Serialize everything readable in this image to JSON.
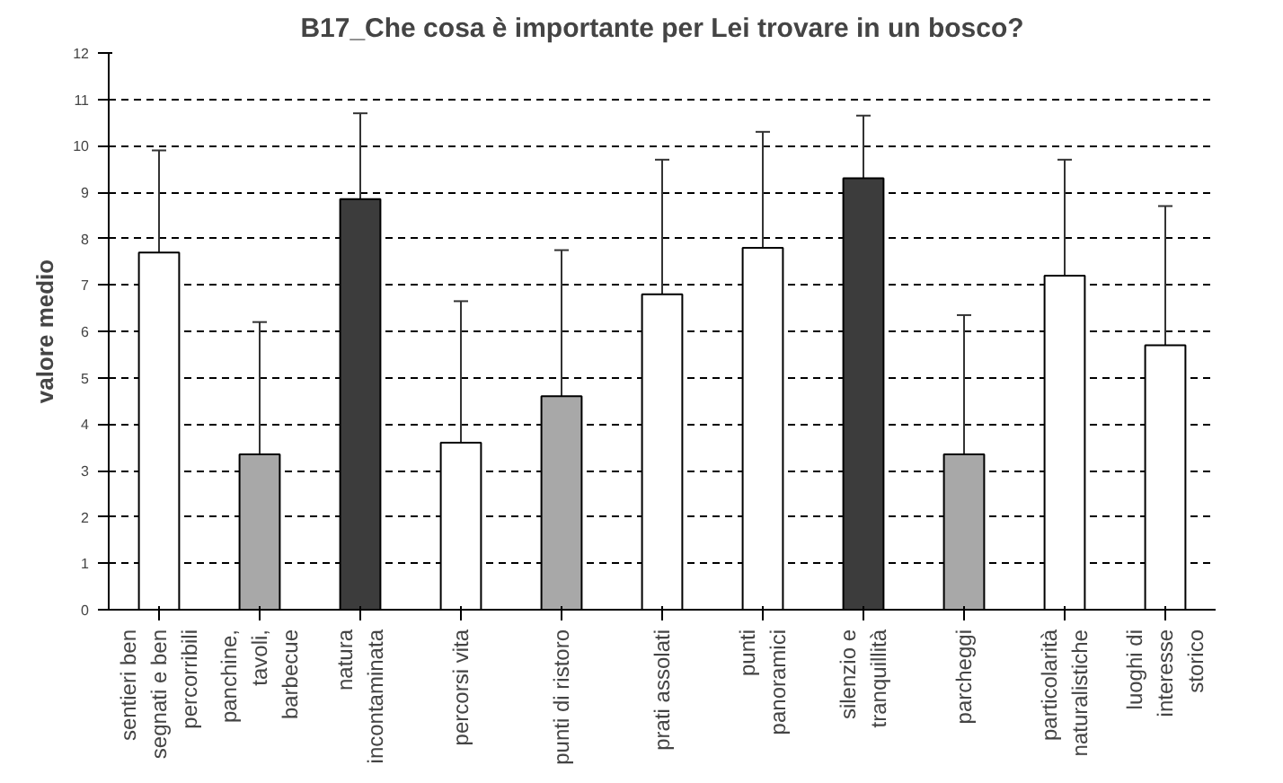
{
  "chart_data": {
    "type": "bar",
    "title": "B17_Che cosa è importante per Lei trovare in un bosco?",
    "ylabel": "valore medio",
    "categories": [
      "sentieri ben\nsegnati e ben\npercorribili",
      "panchine,\ntavoli,\nbarbecue",
      "natura\nincontaminata",
      "percorsi vita",
      "punti di ristoro",
      "prati assolati",
      "punti\npanoramici",
      "silenzio e\ntranquillità",
      "parcheggi",
      "particolarità\nnaturalistiche",
      "luoghi di\ninteresse\nstorico"
    ],
    "values": [
      7.7,
      3.35,
      8.85,
      3.6,
      4.6,
      6.8,
      7.8,
      9.3,
      3.35,
      7.2,
      5.7
    ],
    "errors": [
      [
        7.7,
        9.9
      ],
      [
        3.35,
        6.2
      ],
      [
        8.85,
        10.7
      ],
      [
        3.6,
        6.65
      ],
      [
        4.6,
        7.75
      ],
      [
        6.8,
        9.7
      ],
      [
        7.8,
        10.3
      ],
      [
        9.3,
        10.65
      ],
      [
        3.35,
        6.35
      ],
      [
        7.2,
        9.7
      ],
      [
        5.7,
        8.7
      ]
    ],
    "colors": [
      "#ffffff",
      "#a8a8a8",
      "#3c3c3c",
      "#ffffff",
      "#a8a8a8",
      "#ffffff",
      "#ffffff",
      "#3c3c3c",
      "#a8a8a8",
      "#ffffff",
      "#ffffff"
    ],
    "ylim": [
      0,
      12
    ],
    "yticks": [
      0,
      1,
      2,
      3,
      4,
      5,
      6,
      7,
      8,
      9,
      10,
      11,
      12
    ],
    "grid": "y"
  }
}
